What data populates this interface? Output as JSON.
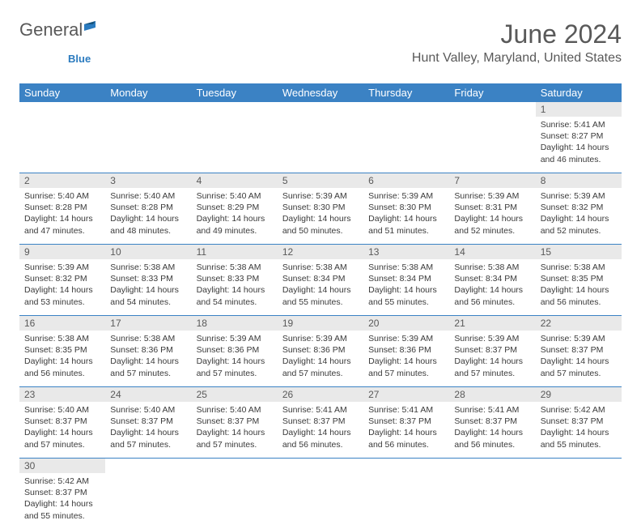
{
  "brand": {
    "general": "General",
    "blue": "Blue"
  },
  "title": "June 2024",
  "location": "Hunt Valley, Maryland, United States",
  "colors": {
    "header_bg": "#3b82c4",
    "header_text": "#ffffff",
    "daynum_bg": "#e9e9e9",
    "text": "#3a3a3a",
    "muted": "#595959",
    "rule": "#3b82c4",
    "logo_blue": "#2b7bbf",
    "page_bg": "#ffffff"
  },
  "typography": {
    "title_fontsize": 32,
    "location_fontsize": 16,
    "weekday_fontsize": 13,
    "daynum_fontsize": 12,
    "cell_fontsize": 10.5
  },
  "weekdays": [
    "Sunday",
    "Monday",
    "Tuesday",
    "Wednesday",
    "Thursday",
    "Friday",
    "Saturday"
  ],
  "weeks": [
    [
      null,
      null,
      null,
      null,
      null,
      null,
      {
        "n": "1",
        "sunrise": "5:41 AM",
        "sunset": "8:27 PM",
        "daylight": "14 hours and 46 minutes."
      }
    ],
    [
      {
        "n": "2",
        "sunrise": "5:40 AM",
        "sunset": "8:28 PM",
        "daylight": "14 hours and 47 minutes."
      },
      {
        "n": "3",
        "sunrise": "5:40 AM",
        "sunset": "8:28 PM",
        "daylight": "14 hours and 48 minutes."
      },
      {
        "n": "4",
        "sunrise": "5:40 AM",
        "sunset": "8:29 PM",
        "daylight": "14 hours and 49 minutes."
      },
      {
        "n": "5",
        "sunrise": "5:39 AM",
        "sunset": "8:30 PM",
        "daylight": "14 hours and 50 minutes."
      },
      {
        "n": "6",
        "sunrise": "5:39 AM",
        "sunset": "8:30 PM",
        "daylight": "14 hours and 51 minutes."
      },
      {
        "n": "7",
        "sunrise": "5:39 AM",
        "sunset": "8:31 PM",
        "daylight": "14 hours and 52 minutes."
      },
      {
        "n": "8",
        "sunrise": "5:39 AM",
        "sunset": "8:32 PM",
        "daylight": "14 hours and 52 minutes."
      }
    ],
    [
      {
        "n": "9",
        "sunrise": "5:39 AM",
        "sunset": "8:32 PM",
        "daylight": "14 hours and 53 minutes."
      },
      {
        "n": "10",
        "sunrise": "5:38 AM",
        "sunset": "8:33 PM",
        "daylight": "14 hours and 54 minutes."
      },
      {
        "n": "11",
        "sunrise": "5:38 AM",
        "sunset": "8:33 PM",
        "daylight": "14 hours and 54 minutes."
      },
      {
        "n": "12",
        "sunrise": "5:38 AM",
        "sunset": "8:34 PM",
        "daylight": "14 hours and 55 minutes."
      },
      {
        "n": "13",
        "sunrise": "5:38 AM",
        "sunset": "8:34 PM",
        "daylight": "14 hours and 55 minutes."
      },
      {
        "n": "14",
        "sunrise": "5:38 AM",
        "sunset": "8:34 PM",
        "daylight": "14 hours and 56 minutes."
      },
      {
        "n": "15",
        "sunrise": "5:38 AM",
        "sunset": "8:35 PM",
        "daylight": "14 hours and 56 minutes."
      }
    ],
    [
      {
        "n": "16",
        "sunrise": "5:38 AM",
        "sunset": "8:35 PM",
        "daylight": "14 hours and 56 minutes."
      },
      {
        "n": "17",
        "sunrise": "5:38 AM",
        "sunset": "8:36 PM",
        "daylight": "14 hours and 57 minutes."
      },
      {
        "n": "18",
        "sunrise": "5:39 AM",
        "sunset": "8:36 PM",
        "daylight": "14 hours and 57 minutes."
      },
      {
        "n": "19",
        "sunrise": "5:39 AM",
        "sunset": "8:36 PM",
        "daylight": "14 hours and 57 minutes."
      },
      {
        "n": "20",
        "sunrise": "5:39 AM",
        "sunset": "8:36 PM",
        "daylight": "14 hours and 57 minutes."
      },
      {
        "n": "21",
        "sunrise": "5:39 AM",
        "sunset": "8:37 PM",
        "daylight": "14 hours and 57 minutes."
      },
      {
        "n": "22",
        "sunrise": "5:39 AM",
        "sunset": "8:37 PM",
        "daylight": "14 hours and 57 minutes."
      }
    ],
    [
      {
        "n": "23",
        "sunrise": "5:40 AM",
        "sunset": "8:37 PM",
        "daylight": "14 hours and 57 minutes."
      },
      {
        "n": "24",
        "sunrise": "5:40 AM",
        "sunset": "8:37 PM",
        "daylight": "14 hours and 57 minutes."
      },
      {
        "n": "25",
        "sunrise": "5:40 AM",
        "sunset": "8:37 PM",
        "daylight": "14 hours and 57 minutes."
      },
      {
        "n": "26",
        "sunrise": "5:41 AM",
        "sunset": "8:37 PM",
        "daylight": "14 hours and 56 minutes."
      },
      {
        "n": "27",
        "sunrise": "5:41 AM",
        "sunset": "8:37 PM",
        "daylight": "14 hours and 56 minutes."
      },
      {
        "n": "28",
        "sunrise": "5:41 AM",
        "sunset": "8:37 PM",
        "daylight": "14 hours and 56 minutes."
      },
      {
        "n": "29",
        "sunrise": "5:42 AM",
        "sunset": "8:37 PM",
        "daylight": "14 hours and 55 minutes."
      }
    ],
    [
      {
        "n": "30",
        "sunrise": "5:42 AM",
        "sunset": "8:37 PM",
        "daylight": "14 hours and 55 minutes."
      },
      null,
      null,
      null,
      null,
      null,
      null
    ]
  ],
  "labels": {
    "sunrise": "Sunrise: ",
    "sunset": "Sunset: ",
    "daylight": "Daylight: "
  }
}
